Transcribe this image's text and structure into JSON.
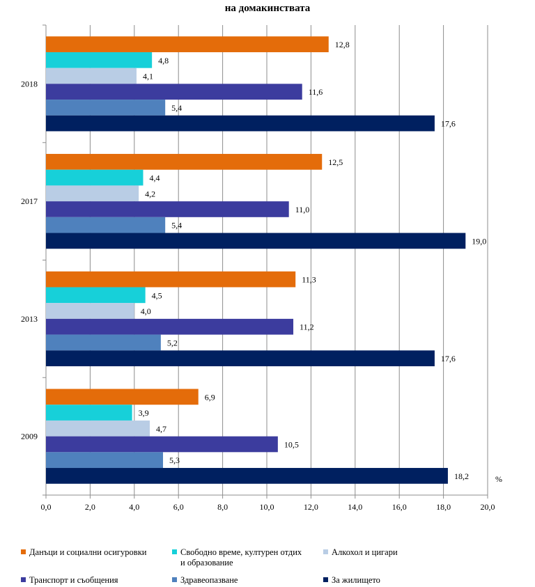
{
  "chart_data": {
    "type": "bar",
    "orientation": "horizontal",
    "title": "на домакинствата",
    "xlabel": "%",
    "xlim": [
      0,
      20
    ],
    "x_ticks": [
      "0,0",
      "2,0",
      "4,0",
      "6,0",
      "8,0",
      "10,0",
      "12,0",
      "14,0",
      "16,0",
      "18,0",
      "20,0"
    ],
    "categories": [
      "2018",
      "2017",
      "2013",
      "2009"
    ],
    "series": [
      {
        "name": "Данъци и социални осигуровки",
        "color": "#e46c0a",
        "values": [
          12.8,
          12.5,
          11.3,
          6.9
        ],
        "labels": [
          "12,8",
          "12,5",
          "11,3",
          "6,9"
        ]
      },
      {
        "name": "Свободно време, културен отдих и образование",
        "color": "#17d0d9",
        "values": [
          4.8,
          4.4,
          4.5,
          3.9
        ],
        "labels": [
          "4,8",
          "4,4",
          "4,5",
          "3,9"
        ]
      },
      {
        "name": "Алкохол и цигари",
        "color": "#b9cde5",
        "values": [
          4.1,
          4.2,
          4.0,
          4.7
        ],
        "labels": [
          "4,1",
          "4,2",
          "4,0",
          "4,7"
        ]
      },
      {
        "name": "Транспорт и съобщения",
        "color": "#3c3c9e",
        "values": [
          11.6,
          11.0,
          11.2,
          10.5
        ],
        "labels": [
          "11,6",
          "11,0",
          "11,2",
          "10,5"
        ]
      },
      {
        "name": "Здравеопазване",
        "color": "#4f81bd",
        "values": [
          5.4,
          5.4,
          5.2,
          5.3
        ],
        "labels": [
          "5,4",
          "5,4",
          "5,2",
          "5,3"
        ]
      },
      {
        "name": "За жилището",
        "color": "#002060",
        "values": [
          17.6,
          19.0,
          17.6,
          18.2
        ],
        "labels": [
          "17,6",
          "19,0",
          "17,6",
          "18,2"
        ]
      }
    ],
    "legend": [
      {
        "lines": [
          "Данъци и социални осигуровки"
        ],
        "color": "#e46c0a"
      },
      {
        "lines": [
          "Свободно време, културен отдих",
          "и образование"
        ],
        "color": "#17d0d9"
      },
      {
        "lines": [
          "Алкохол и цигари"
        ],
        "color": "#b9cde5"
      },
      {
        "lines": [
          "Транспорт и съобщения"
        ],
        "color": "#3c3c9e"
      },
      {
        "lines": [
          "Здравеопазване"
        ],
        "color": "#4f81bd"
      },
      {
        "lines": [
          "За жилището"
        ],
        "color": "#002060"
      }
    ],
    "grid": true,
    "legend_position": "bottom"
  }
}
